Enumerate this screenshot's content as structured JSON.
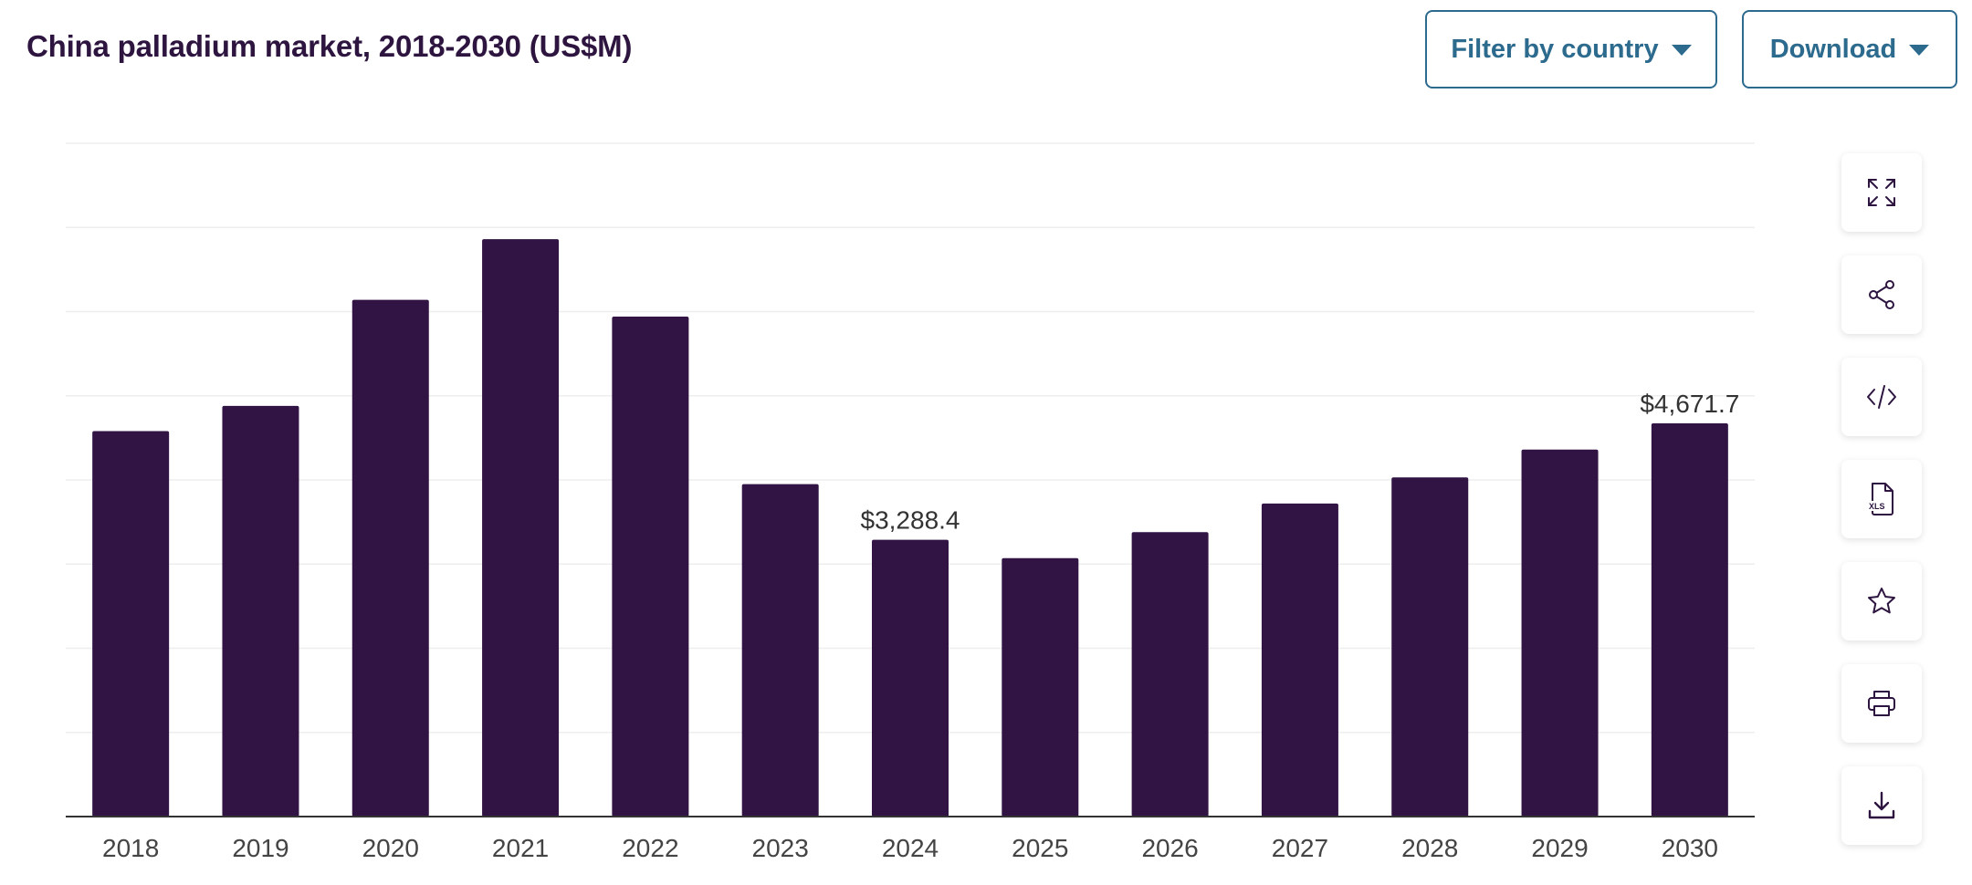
{
  "header": {
    "title": "China palladium market, 2018-2030 (US$M)",
    "filter_label": "Filter by country",
    "download_label": "Download"
  },
  "tools": [
    {
      "icon": "expand-icon",
      "name": "expand-button"
    },
    {
      "icon": "share-icon",
      "name": "share-button"
    },
    {
      "icon": "embed-code-icon",
      "name": "embed-button"
    },
    {
      "icon": "xls-file-icon",
      "name": "xls-export-button"
    },
    {
      "icon": "star-icon",
      "name": "favorite-button"
    },
    {
      "icon": "print-icon",
      "name": "print-button"
    },
    {
      "icon": "download-icon",
      "name": "download-image-button"
    }
  ],
  "colors": {
    "bar": "#311443",
    "title": "#2d1540",
    "accent": "#2c6a8e",
    "grid": "#eeeeee",
    "axis": "#333333",
    "tick": "#444444"
  },
  "chart_data": {
    "type": "bar",
    "title": "China palladium market, 2018-2030 (US$M)",
    "xlabel": "",
    "ylabel": "",
    "categories": [
      "2018",
      "2019",
      "2020",
      "2021",
      "2022",
      "2023",
      "2024",
      "2025",
      "2026",
      "2027",
      "2028",
      "2029",
      "2030"
    ],
    "values": [
      4580,
      4880,
      6140,
      6860,
      5940,
      3950,
      3288.4,
      3070,
      3380,
      3720,
      4030,
      4360,
      4671.7
    ],
    "data_labels": [
      {
        "index": 6,
        "text": "$3,288.4"
      },
      {
        "index": 12,
        "text": "$4,671.7"
      }
    ],
    "ylim": [
      0,
      8000
    ],
    "grid": true,
    "gridlines": 8,
    "legend": "none"
  }
}
